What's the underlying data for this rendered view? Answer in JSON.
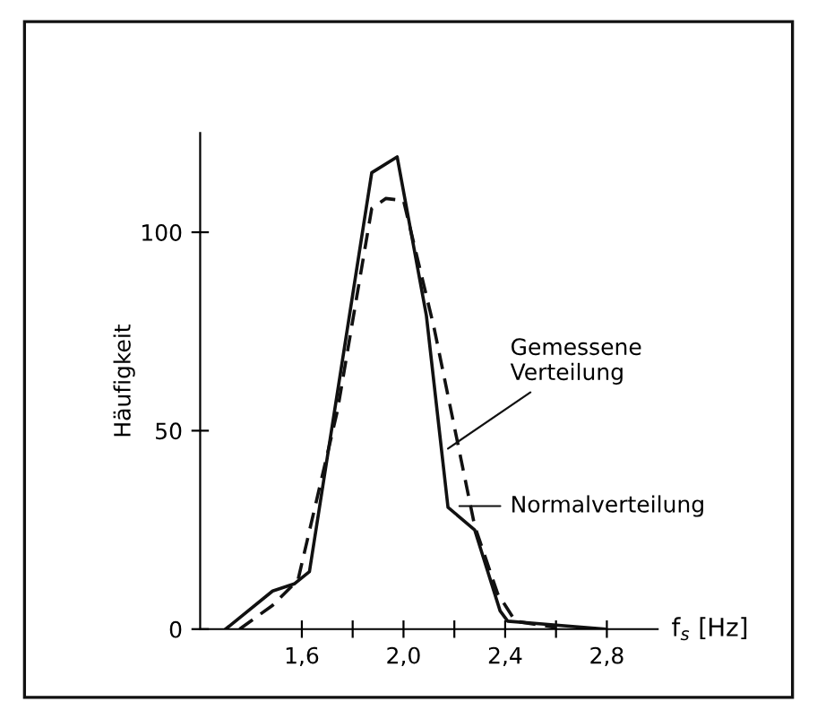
{
  "chart_data": {
    "type": "line",
    "xlabel": "f$_{s}$ [Hz]",
    "ylabel": "Häufigkeit",
    "xlim": [
      1.2,
      3.0
    ],
    "ylim": [
      0,
      125
    ],
    "xticks": [
      {
        "value": 1.6,
        "label": "1,6"
      },
      {
        "value": 1.8,
        "label": null
      },
      {
        "value": 2.0,
        "label": "2,0"
      },
      {
        "value": 2.2,
        "label": null
      },
      {
        "value": 2.4,
        "label": "2,4"
      },
      {
        "value": 2.6,
        "label": null
      },
      {
        "value": 2.8,
        "label": "2,8"
      }
    ],
    "yticks": [
      0,
      50,
      100
    ],
    "grid": false,
    "legend": false,
    "series": [
      {
        "color": "#111111",
        "line_style": "solid",
        "x": [
          1.3,
          1.485,
          1.57,
          1.63,
          1.875,
          1.975,
          2.09,
          2.175,
          2.28,
          2.38,
          2.41,
          2.6,
          2.79
        ],
        "values": [
          0,
          9.6,
          11.4,
          14.5,
          115,
          119,
          79,
          30.7,
          25,
          4.6,
          2,
          1,
          0
        ]
      },
      {
        "color": "#111111",
        "line_style": "dashed",
        "x": [
          1.355,
          1.485,
          1.585,
          1.74,
          1.875,
          1.93,
          2.0,
          2.12,
          2.2,
          2.28,
          2.37,
          2.44,
          2.6
        ],
        "values": [
          0,
          6,
          12.4,
          55,
          106,
          108.5,
          108,
          76,
          51,
          26,
          9,
          2,
          0.4
        ]
      }
    ],
    "annotations": [
      {
        "text": "Gemessene\nVerteilung",
        "x": 2.175,
        "y": 45.5
      },
      {
        "text": "Normalverteilung",
        "x": 2.22,
        "y": 31
      }
    ]
  }
}
